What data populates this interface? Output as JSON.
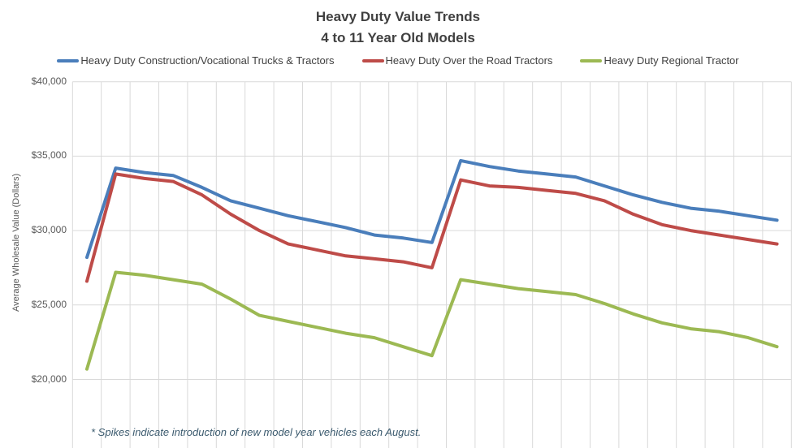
{
  "title": {
    "line1": "Heavy Duty Value Trends",
    "line2": "4 to 11 Year Old Models"
  },
  "y_axis": {
    "title": "Average Wholesale Value (Dollars)",
    "ticks": [
      "$40,000",
      "$35,000",
      "$30,000",
      "$25,000",
      "$20,000"
    ],
    "tick_values": [
      40000,
      35000,
      30000,
      25000,
      20000
    ]
  },
  "annotation": "* Spikes indicate introduction of new model year vehicles each August.",
  "colors": {
    "gridline": "#d9d9d9",
    "title_text": "#404040",
    "tick_text": "#595959",
    "annotation_text": "#3b5a6e"
  },
  "chart_data": {
    "type": "line",
    "title": "Heavy Duty Value Trends — 4 to 11 Year Old Models",
    "ylabel": "Average Wholesale Value (Dollars)",
    "ylim": [
      20000,
      40000
    ],
    "grid": true,
    "legend_position": "top",
    "x_axis_labels_visible": false,
    "points_per_series": 25,
    "note": "* Spikes indicate introduction of new model year vehicles each August.",
    "series": [
      {
        "name": "Heavy Duty Construction/Vocational Trucks & Tractors",
        "color": "#4a7ebb",
        "values": [
          28200,
          34200,
          33900,
          33700,
          32900,
          32000,
          31500,
          31000,
          30600,
          30200,
          29700,
          29500,
          29200,
          34700,
          34300,
          34000,
          33800,
          33600,
          33000,
          32400,
          31900,
          31500,
          31300,
          31000,
          30700
        ]
      },
      {
        "name": "Heavy Duty Over the Road Tractors",
        "color": "#be4b48",
        "values": [
          26600,
          33800,
          33500,
          33300,
          32400,
          31100,
          30000,
          29100,
          28700,
          28300,
          28100,
          27900,
          27500,
          33400,
          33000,
          32900,
          32700,
          32500,
          32000,
          31100,
          30400,
          30000,
          29700,
          29400,
          29100
        ]
      },
      {
        "name": "Heavy Duty Regional Tractor",
        "color": "#9cb953",
        "values": [
          20700,
          27200,
          27000,
          26700,
          26400,
          25400,
          24300,
          23900,
          23500,
          23100,
          22800,
          22200,
          21600,
          26700,
          26400,
          26100,
          25900,
          25700,
          25100,
          24400,
          23800,
          23400,
          23200,
          22800,
          22200
        ]
      }
    ]
  }
}
